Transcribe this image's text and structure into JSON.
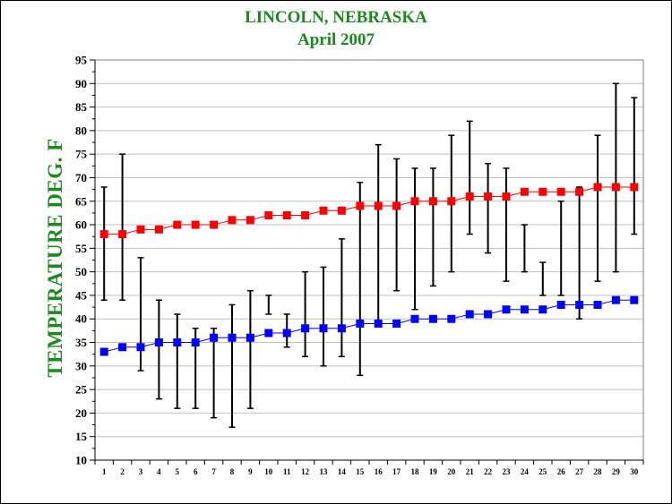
{
  "chart_data": {
    "type": "line",
    "title": "LINCOLN, NEBRASKA",
    "subtitle": "April  2007",
    "ylabel": "TEMPERATURE DEG. F",
    "xlabel": "",
    "ylim": [
      10,
      95
    ],
    "y_ticks": [
      10,
      15,
      20,
      25,
      30,
      35,
      40,
      45,
      50,
      55,
      60,
      65,
      70,
      75,
      80,
      85,
      90,
      95
    ],
    "x": [
      1,
      2,
      3,
      4,
      5,
      6,
      7,
      8,
      9,
      10,
      11,
      12,
      13,
      14,
      15,
      16,
      17,
      18,
      19,
      20,
      21,
      22,
      23,
      24,
      25,
      26,
      27,
      28,
      29,
      30
    ],
    "grid": "horizontal",
    "colors": {
      "high": "#ff0000",
      "low": "#0000ff",
      "range": "#000000",
      "title": "#1a8a1a"
    },
    "series": [
      {
        "values": [
          58,
          58,
          59,
          59,
          60,
          60,
          60,
          61,
          61,
          62,
          62,
          62,
          63,
          63,
          64,
          64,
          64,
          65,
          65,
          65,
          66,
          66,
          66,
          67,
          67,
          67,
          67,
          68,
          68,
          68
        ]
      },
      {
        "values": [
          33,
          34,
          34,
          35,
          35,
          35,
          36,
          36,
          36,
          37,
          37,
          38,
          38,
          38,
          39,
          39,
          39,
          40,
          40,
          40,
          41,
          41,
          42,
          42,
          42,
          43,
          43,
          43,
          44,
          44
        ]
      }
    ],
    "daily_range": {
      "high": [
        68,
        75,
        53,
        44,
        41,
        38,
        38,
        43,
        46,
        45,
        41,
        50,
        51,
        57,
        69,
        77,
        74,
        72,
        72,
        79,
        82,
        73,
        72,
        60,
        52,
        65,
        68,
        79,
        90,
        87
      ],
      "low": [
        44,
        44,
        29,
        23,
        21,
        21,
        19,
        17,
        21,
        41,
        34,
        32,
        30,
        32,
        28,
        39,
        46,
        42,
        47,
        50,
        58,
        54,
        48,
        50,
        45,
        45,
        40,
        48,
        50,
        58
      ]
    }
  }
}
